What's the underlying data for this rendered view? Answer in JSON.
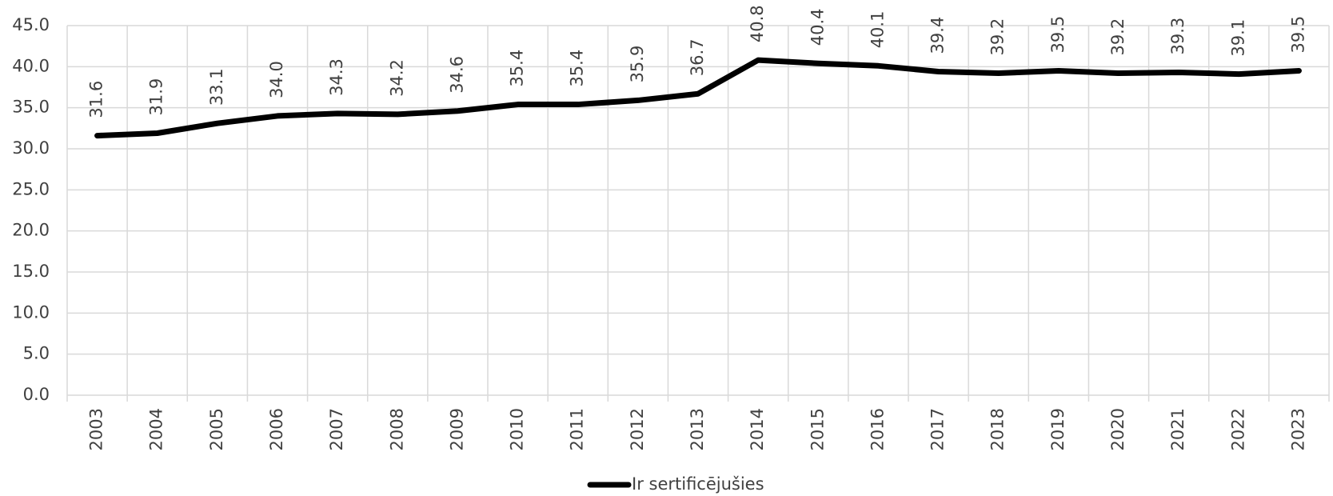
{
  "chart_data": {
    "type": "line",
    "categories": [
      "2003",
      "2004",
      "2005",
      "2006",
      "2007",
      "2008",
      "2009",
      "2010",
      "2011",
      "2012",
      "2013",
      "2014",
      "2015",
      "2016",
      "2017",
      "2018",
      "2019",
      "2020",
      "2021",
      "2022",
      "2023"
    ],
    "series": [
      {
        "name": "Ir sertificējušies",
        "color": "#000000",
        "values": [
          31.6,
          31.9,
          33.1,
          34.0,
          34.3,
          34.2,
          34.6,
          35.4,
          35.4,
          35.9,
          36.7,
          40.8,
          40.4,
          40.1,
          39.4,
          39.2,
          39.5,
          39.2,
          39.3,
          39.1,
          39.5
        ],
        "value_labels": [
          "31.6",
          "31.9",
          "33.1",
          "34.0",
          "34.3",
          "34.2",
          "34.6",
          "35.4",
          "35.4",
          "35.9",
          "36.7",
          "40.8",
          "40.4",
          "40.1",
          "39.4",
          "39.2",
          "39.5",
          "39.2",
          "39.3",
          "39.1",
          "39.5"
        ]
      }
    ],
    "ylim": [
      0,
      45
    ],
    "yticks": [
      {
        "value": 0,
        "label": "0.0"
      },
      {
        "value": 5,
        "label": "5.0"
      },
      {
        "value": 10,
        "label": "10.0"
      },
      {
        "value": 15,
        "label": "15.0"
      },
      {
        "value": 20,
        "label": "20.0"
      },
      {
        "value": 25,
        "label": "25.0"
      },
      {
        "value": 30,
        "label": "30.0"
      },
      {
        "value": 35,
        "label": "35.0"
      },
      {
        "value": 40,
        "label": "40.0"
      },
      {
        "value": 45,
        "label": "45.0"
      }
    ],
    "grid": true,
    "legend": "bottom"
  }
}
